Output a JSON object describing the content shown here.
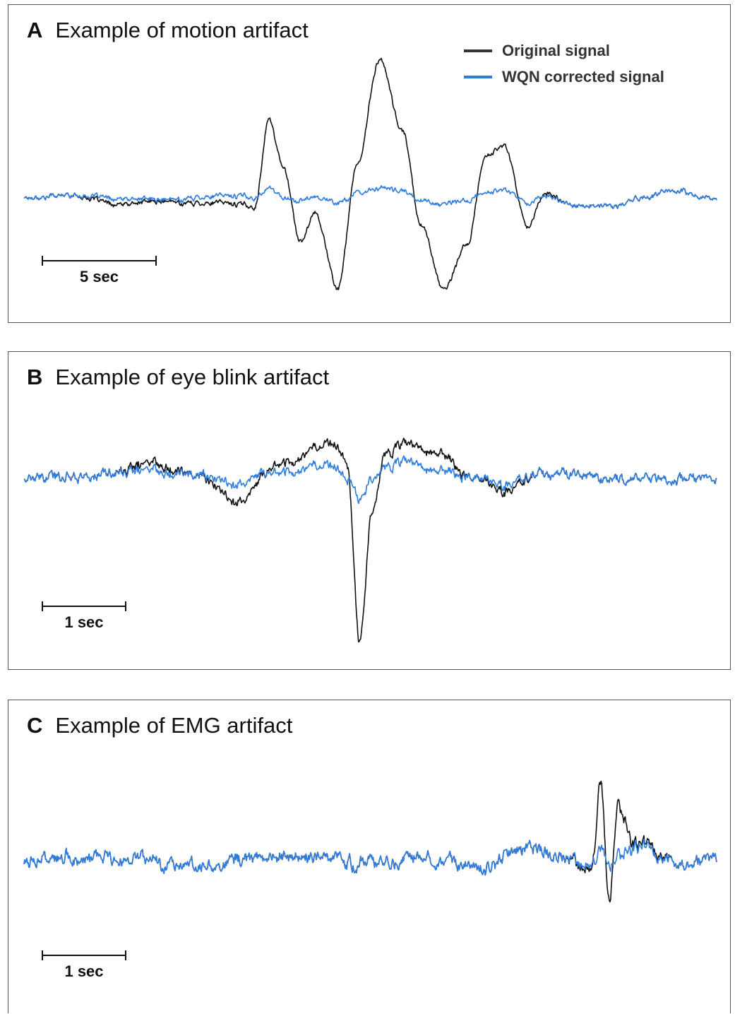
{
  "colors": {
    "original": "#111111",
    "corrected": "#2f7ddf"
  },
  "legend": {
    "original_label": "Original signal",
    "corrected_label": "WQN corrected signal"
  },
  "chart_data": [
    {
      "type": "line",
      "panel": "A",
      "title": "Example of motion artifact",
      "x_unit": "sec",
      "x": [
        0,
        2,
        4,
        6,
        8,
        10,
        10.6,
        11.2,
        12,
        12.6,
        13.6,
        14.4,
        15.4,
        16.4,
        17.2,
        18.2,
        19.2,
        20,
        20.8,
        21.8,
        22.6,
        23.6,
        24.6,
        25.6,
        26.6,
        28,
        30
      ],
      "scale_bar": {
        "label": "5 sec",
        "length": 5
      },
      "series": [
        {
          "name": "Original signal",
          "noise": 0.045,
          "values": [
            0,
            0.03,
            -0.08,
            -0.05,
            -0.06,
            -0.1,
            0.85,
            0.35,
            -0.5,
            -0.15,
            -1.0,
            0.3,
            1.5,
            0.7,
            -0.3,
            -1.0,
            -0.5,
            0.45,
            0.55,
            -0.3,
            0.05,
            -0.07,
            -0.1,
            -0.1,
            -0.02,
            0.05,
            -0.03
          ]
        },
        {
          "name": "WQN corrected signal",
          "noise": 0.045,
          "values": [
            0,
            0.03,
            -0.02,
            -0.03,
            0.01,
            0,
            0.1,
            0,
            -0.05,
            0.02,
            -0.07,
            0.02,
            0.1,
            0.05,
            -0.03,
            -0.07,
            -0.03,
            0.05,
            0.07,
            -0.05,
            0.02,
            -0.07,
            -0.1,
            -0.1,
            -0.02,
            0.05,
            -0.03
          ]
        }
      ]
    },
    {
      "type": "line",
      "panel": "B",
      "title": "Example of eye blink artifact",
      "x_unit": "sec",
      "x": [
        0,
        1,
        1.5,
        2,
        2.5,
        3,
        3.6,
        3.75,
        3.9,
        4.05,
        4.2,
        4.4,
        4.8,
        5.2,
        5.6,
        6,
        7,
        8.05
      ],
      "scale_bar": {
        "label": "1 sec",
        "length": 1
      },
      "series": [
        {
          "name": "Original signal",
          "noise": 0.09,
          "values": [
            0,
            0.05,
            0.2,
            0.05,
            -0.25,
            0.2,
            0.45,
            0.2,
            -1.8,
            -0.3,
            0.3,
            0.4,
            0.3,
            0.05,
            -0.12,
            0.05,
            0,
            0
          ]
        },
        {
          "name": "WQN corrected signal",
          "noise": 0.09,
          "values": [
            0,
            0.05,
            0.12,
            0.05,
            -0.05,
            0.1,
            0.2,
            0,
            -0.2,
            0.05,
            0.15,
            0.2,
            0.1,
            0.05,
            -0.05,
            0.05,
            0,
            0
          ]
        }
      ]
    },
    {
      "type": "line",
      "panel": "C",
      "title": "Example of EMG artifact",
      "x_unit": "sec",
      "x": [
        0,
        1,
        2,
        3,
        4,
        5,
        5.4,
        5.8,
        6.2,
        6.6,
        6.7,
        6.8,
        6.9,
        7.1,
        7.3,
        7.6,
        8.05
      ],
      "scale_bar": {
        "label": "1 sec",
        "length": 1
      },
      "series": [
        {
          "name": "Original signal",
          "noise": 0.15,
          "values": [
            0,
            0.05,
            -0.02,
            0.05,
            0,
            0.05,
            -0.05,
            0.2,
            0.05,
            -0.1,
            1.1,
            -0.6,
            0.8,
            0.2,
            0.15,
            0,
            0
          ]
        },
        {
          "name": "WQN corrected signal",
          "noise": 0.15,
          "values": [
            0,
            0.05,
            -0.02,
            0.05,
            0,
            0.05,
            -0.05,
            0.2,
            0.05,
            -0.05,
            0.15,
            -0.1,
            0.1,
            0.15,
            0.1,
            0,
            0
          ]
        }
      ]
    }
  ]
}
